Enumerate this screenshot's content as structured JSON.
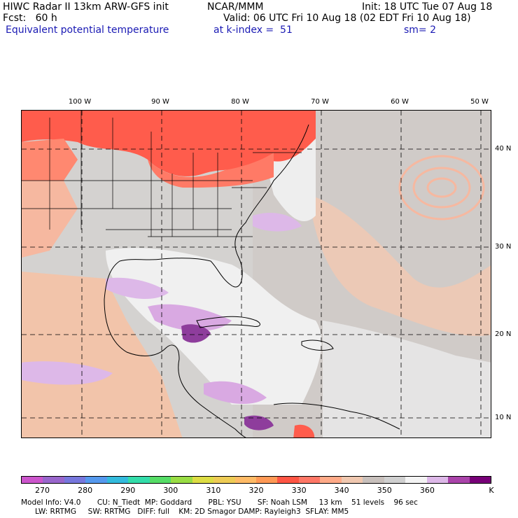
{
  "header": {
    "title_left": "HIWC Radar II 13km ARW-GFS init",
    "title_center": "NCAR/MMM",
    "init": "Init: 18 UTC Tue 07 Aug 18",
    "fcst": "Fcst:   60 h",
    "valid": "Valid: 06 UTC Fri 10 Aug 18 (02 EDT Fri 10 Aug 18)",
    "field": "Equivalent potential temperature",
    "level": "at k-index =  51",
    "smooth": "sm= 2"
  },
  "map": {
    "lon_labels": [
      "100 W",
      "90 W",
      "80 W",
      "70 W",
      "60 W",
      "50 W"
    ],
    "lat_labels": [
      "40 N",
      "30 N",
      "20 N",
      "10 N"
    ]
  },
  "colorbar": {
    "colors": [
      "#cc55cc",
      "#9966cc",
      "#7777dd",
      "#5599ee",
      "#33bbdd",
      "#33ddaa",
      "#55dd66",
      "#99dd44",
      "#dddd44",
      "#eecc55",
      "#ffbb66",
      "#ff9955",
      "#ff5544",
      "#ff7766",
      "#ffaa88",
      "#f0c8b0",
      "#c8c0bc",
      "#d0d0d0",
      "#f4f4f4",
      "#ddb8e8",
      "#aa44aa",
      "#770077"
    ],
    "labels": [
      "270",
      "280",
      "290",
      "300",
      "310",
      "320",
      "330",
      "340",
      "350",
      "360"
    ],
    "unit": "K"
  },
  "footer": {
    "line1": "Model Info: V4.0       CU: N_Tiedt  MP: Goddard       PBL: YSU       SF: Noah LSM     13 km    51 levels    96 sec",
    "line2": "      LW: RRTMG     SW: RRTMG   DIFF: full    KM: 2D Smagor DAMP: Rayleigh3  SFLAY: MM5"
  }
}
